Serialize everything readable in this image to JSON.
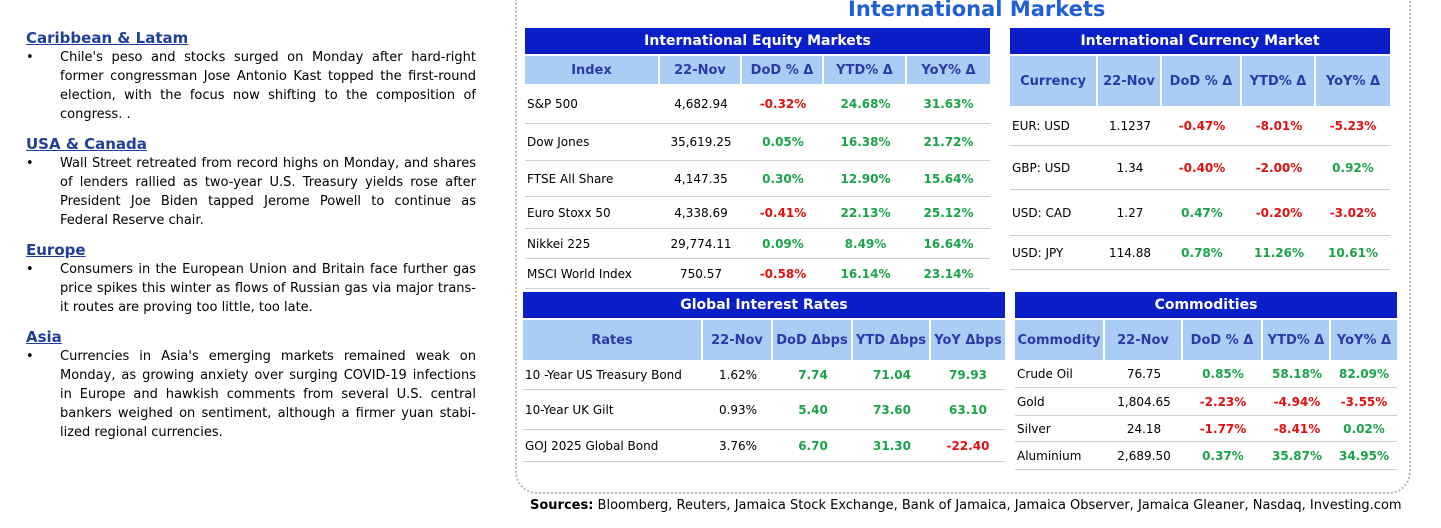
{
  "news": [
    {
      "region": "Caribbean & Latam",
      "bullet": "•",
      "text": "Chile's peso and stocks surged on Monday after hard-right former congressman Jose Antonio Kast topped the first-round election, with the focus now shifting to the composition of congress. ."
    },
    {
      "region": "USA & Canada",
      "bullet": "•",
      "text": "Wall Street retreated from record highs on Monday, and shares of lenders rallied as two-year U.S. Treasury yields rose after President Joe Biden tapped Jerome Powell to continue as Federal Reserve chair."
    },
    {
      "region": "Europe",
      "bullet": "•",
      "text": "Consumers in the European Union and Britain face further gas price spikes this winter as flows of Russian gas via major trans-it routes are proving too little, too late."
    },
    {
      "region": "Asia",
      "bullet": "•",
      "text": "Currencies in Asia's emerging markets remained weak on Monday, as growing anxiety over surging COVID-19 infections in Europe and hawkish comments from several U.S. central bankers weighed on sentiment, although a firmer yuan stabi-lized regional currencies."
    }
  ],
  "panel_title": "International Markets",
  "equity": {
    "title": "International Equity Markets",
    "headers": [
      "Index",
      "22-Nov",
      "DoD % Δ",
      "YTD% Δ",
      "YoY% Δ"
    ],
    "rows": [
      [
        "S&P 500",
        "4,682.94",
        "-0.32%",
        "24.68%",
        "31.63%"
      ],
      [
        "Dow Jones",
        "35,619.25",
        "0.05%",
        "16.38%",
        "21.72%"
      ],
      [
        "FTSE All Share",
        "4,147.35",
        "0.30%",
        "12.90%",
        "15.64%"
      ],
      [
        "Euro Stoxx 50",
        "4,338.69",
        "-0.41%",
        "22.13%",
        "25.12%"
      ],
      [
        "Nikkei 225",
        "29,774.11",
        "0.09%",
        "8.49%",
        "16.64%"
      ],
      [
        "MSCI World Index",
        "750.57",
        "-0.58%",
        "16.14%",
        "23.14%"
      ]
    ]
  },
  "currency": {
    "title": "International Currency Market",
    "headers": [
      "Currency",
      "22-Nov",
      "DoD % Δ",
      "YTD% Δ",
      "YoY% Δ"
    ],
    "rows": [
      [
        "EUR: USD",
        "1.1237",
        "-0.47%",
        "-8.01%",
        "-5.23%"
      ],
      [
        "GBP: USD",
        "1.34",
        "-0.40%",
        "-2.00%",
        "0.92%"
      ],
      [
        "USD: CAD",
        "1.27",
        "0.47%",
        "-0.20%",
        "-3.02%"
      ],
      [
        "USD: JPY",
        "114.88",
        "0.78%",
        "11.26%",
        "10.61%"
      ]
    ]
  },
  "rates": {
    "title": "Global Interest Rates",
    "headers": [
      "Rates",
      "22-Nov",
      "DoD Δbps",
      "YTD Δbps",
      "YoY Δbps"
    ],
    "rows": [
      [
        "10 -Year US Treasury Bond",
        "1.62%",
        "7.74",
        "71.04",
        "79.93"
      ],
      [
        "10-Year UK Gilt",
        "0.93%",
        "5.40",
        "73.60",
        "63.10"
      ],
      [
        "GOJ 2025 Global Bond",
        "3.76%",
        "6.70",
        "31.30",
        "-22.40"
      ]
    ]
  },
  "commodities": {
    "title": "Commodities",
    "headers": [
      "Commodity",
      "22-Nov",
      "DoD % Δ",
      "YTD% Δ",
      "YoY% Δ"
    ],
    "rows": [
      [
        "Crude Oil",
        "76.75",
        "0.85%",
        "58.18%",
        "82.09%"
      ],
      [
        "Gold",
        "1,804.65",
        "-2.23%",
        "-4.94%",
        "-3.55%"
      ],
      [
        "Silver",
        "24.18",
        "-1.77%",
        "-8.41%",
        "0.02%"
      ],
      [
        "Aluminium",
        "2,689.50",
        "0.37%",
        "35.87%",
        "34.95%"
      ]
    ]
  },
  "sources": {
    "label": "Sources:",
    "text": " Bloomberg, Reuters, Jamaica Stock Exchange, Bank of Jamaica, Jamaica Observer, Jamaica Gleaner, Nasdaq, Investing.com"
  },
  "colors": {
    "positive": "#1aa34a",
    "negative": "#e01010",
    "title_bar": "#0a1fc7",
    "header_bg": "#a9cdf5",
    "region_title": "#1f3f99",
    "panel_title": "#1f5fd9"
  }
}
